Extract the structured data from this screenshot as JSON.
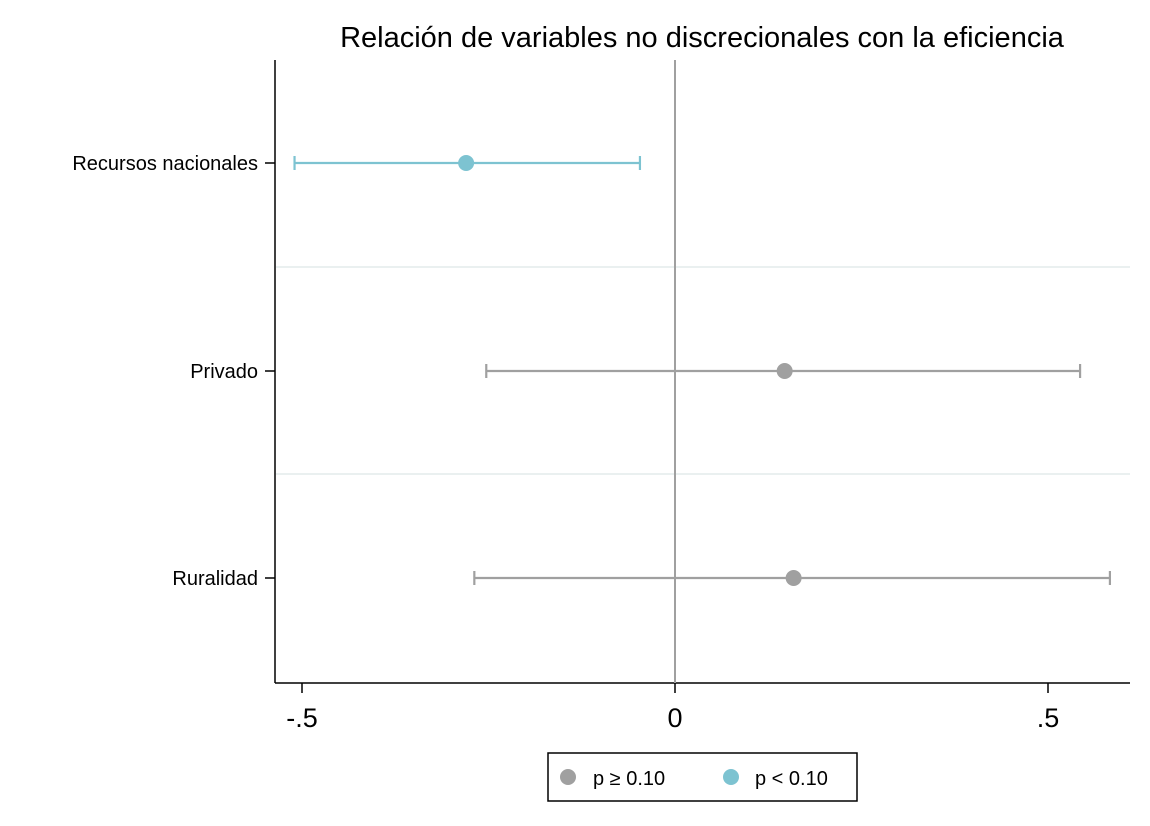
{
  "chart_data": {
    "type": "scatter",
    "subtype": "coefficient-plot",
    "title": "Relación de variables no discrecionales con la eficiencia",
    "xlabel": "",
    "ylabel": "",
    "xlim": [
      -0.53,
      0.61
    ],
    "x_ticks": [
      -0.5,
      0,
      0.5
    ],
    "x_tick_labels": [
      "-.5",
      "0",
      ".5"
    ],
    "reference_line_x": 0,
    "categories": [
      "Recursos nacionales",
      "Privado",
      "Ruralidad"
    ],
    "points": [
      {
        "label": "Recursos nacionales",
        "estimate": -0.28,
        "ci_low": -0.51,
        "ci_high": -0.047,
        "group": "p < 0.10"
      },
      {
        "label": "Privado",
        "estimate": 0.147,
        "ci_low": -0.253,
        "ci_high": 0.543,
        "group": "p ≥ 0.10"
      },
      {
        "label": "Ruralidad",
        "estimate": 0.159,
        "ci_low": -0.269,
        "ci_high": 0.583,
        "group": "p ≥ 0.10"
      }
    ],
    "legend": {
      "position": "bottom",
      "entries": [
        {
          "label": "p ≥ 0.10",
          "color": "#a0a0a0"
        },
        {
          "label": "p < 0.10",
          "color": "#7dc3d1"
        }
      ]
    },
    "colors": {
      "p ≥ 0.10": "#a0a0a0",
      "p < 0.10": "#7dc3d1",
      "separator": "#eaf0f0",
      "reference_line": "#a0a0a0"
    },
    "grid": false
  }
}
